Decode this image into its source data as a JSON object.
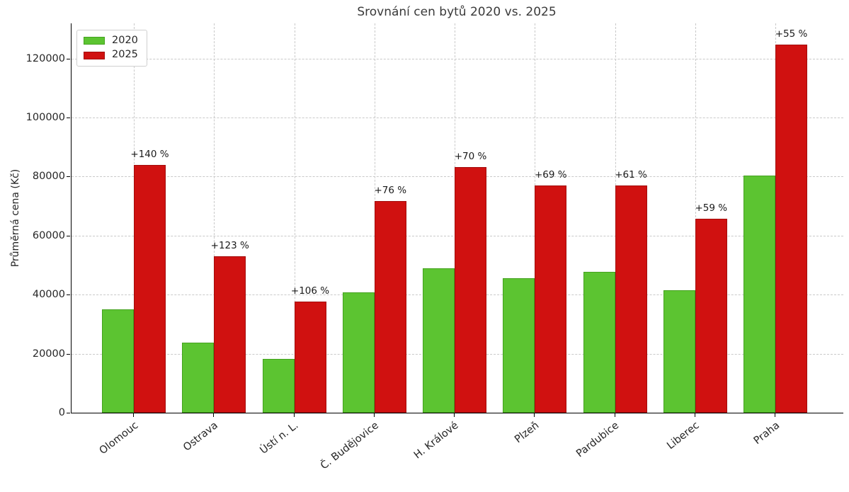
{
  "chart_data": {
    "type": "bar",
    "title": "Srovnání cen bytů 2020 vs. 2025",
    "xlabel": "",
    "ylabel": "Průměrná cena (Kč)",
    "categories": [
      "Olomouc",
      "Ostrava",
      "Ústí n. L.",
      "Č. Budějovice",
      "H. Králové",
      "Plzeň",
      "Pardubice",
      "Liberec",
      "Praha"
    ],
    "series": [
      {
        "name": "2020",
        "color": "#5cc431",
        "edge_color": "#45a21f",
        "values": [
          35000,
          23700,
          18300,
          40700,
          49000,
          45600,
          47700,
          41400,
          80400
        ]
      },
      {
        "name": "2025",
        "color": "#d01110",
        "edge_color": "#a30d0c",
        "values": [
          84000,
          52900,
          37700,
          71600,
          83300,
          77000,
          76900,
          65800,
          124600
        ]
      }
    ],
    "annotations": [
      "+140 %",
      "+123 %",
      "+106 %",
      "+76 %",
      "+70 %",
      "+69 %",
      "+61 %",
      "+59 %",
      "+55 %"
    ],
    "yticks": [
      0,
      20000,
      40000,
      60000,
      80000,
      100000,
      120000
    ],
    "ylim": [
      0,
      131900
    ],
    "grid": "dashed-both-axes",
    "grid_color": "#c9c9c9",
    "legend_position": "upper-left",
    "spines": "left-bottom-only"
  }
}
